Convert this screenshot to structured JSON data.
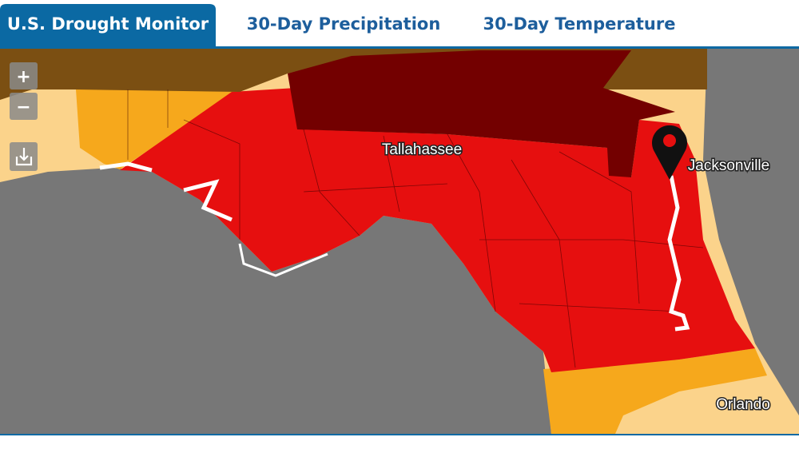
{
  "tabs": [
    "U.S. Drought Monitor",
    "30-Day Precipitation",
    "30-Day Temperature"
  ],
  "map": {
    "zoom_in": "+",
    "zoom_out": "−",
    "places": [
      "Tallahassee",
      "Jacksonville",
      "Orlando"
    ]
  }
}
